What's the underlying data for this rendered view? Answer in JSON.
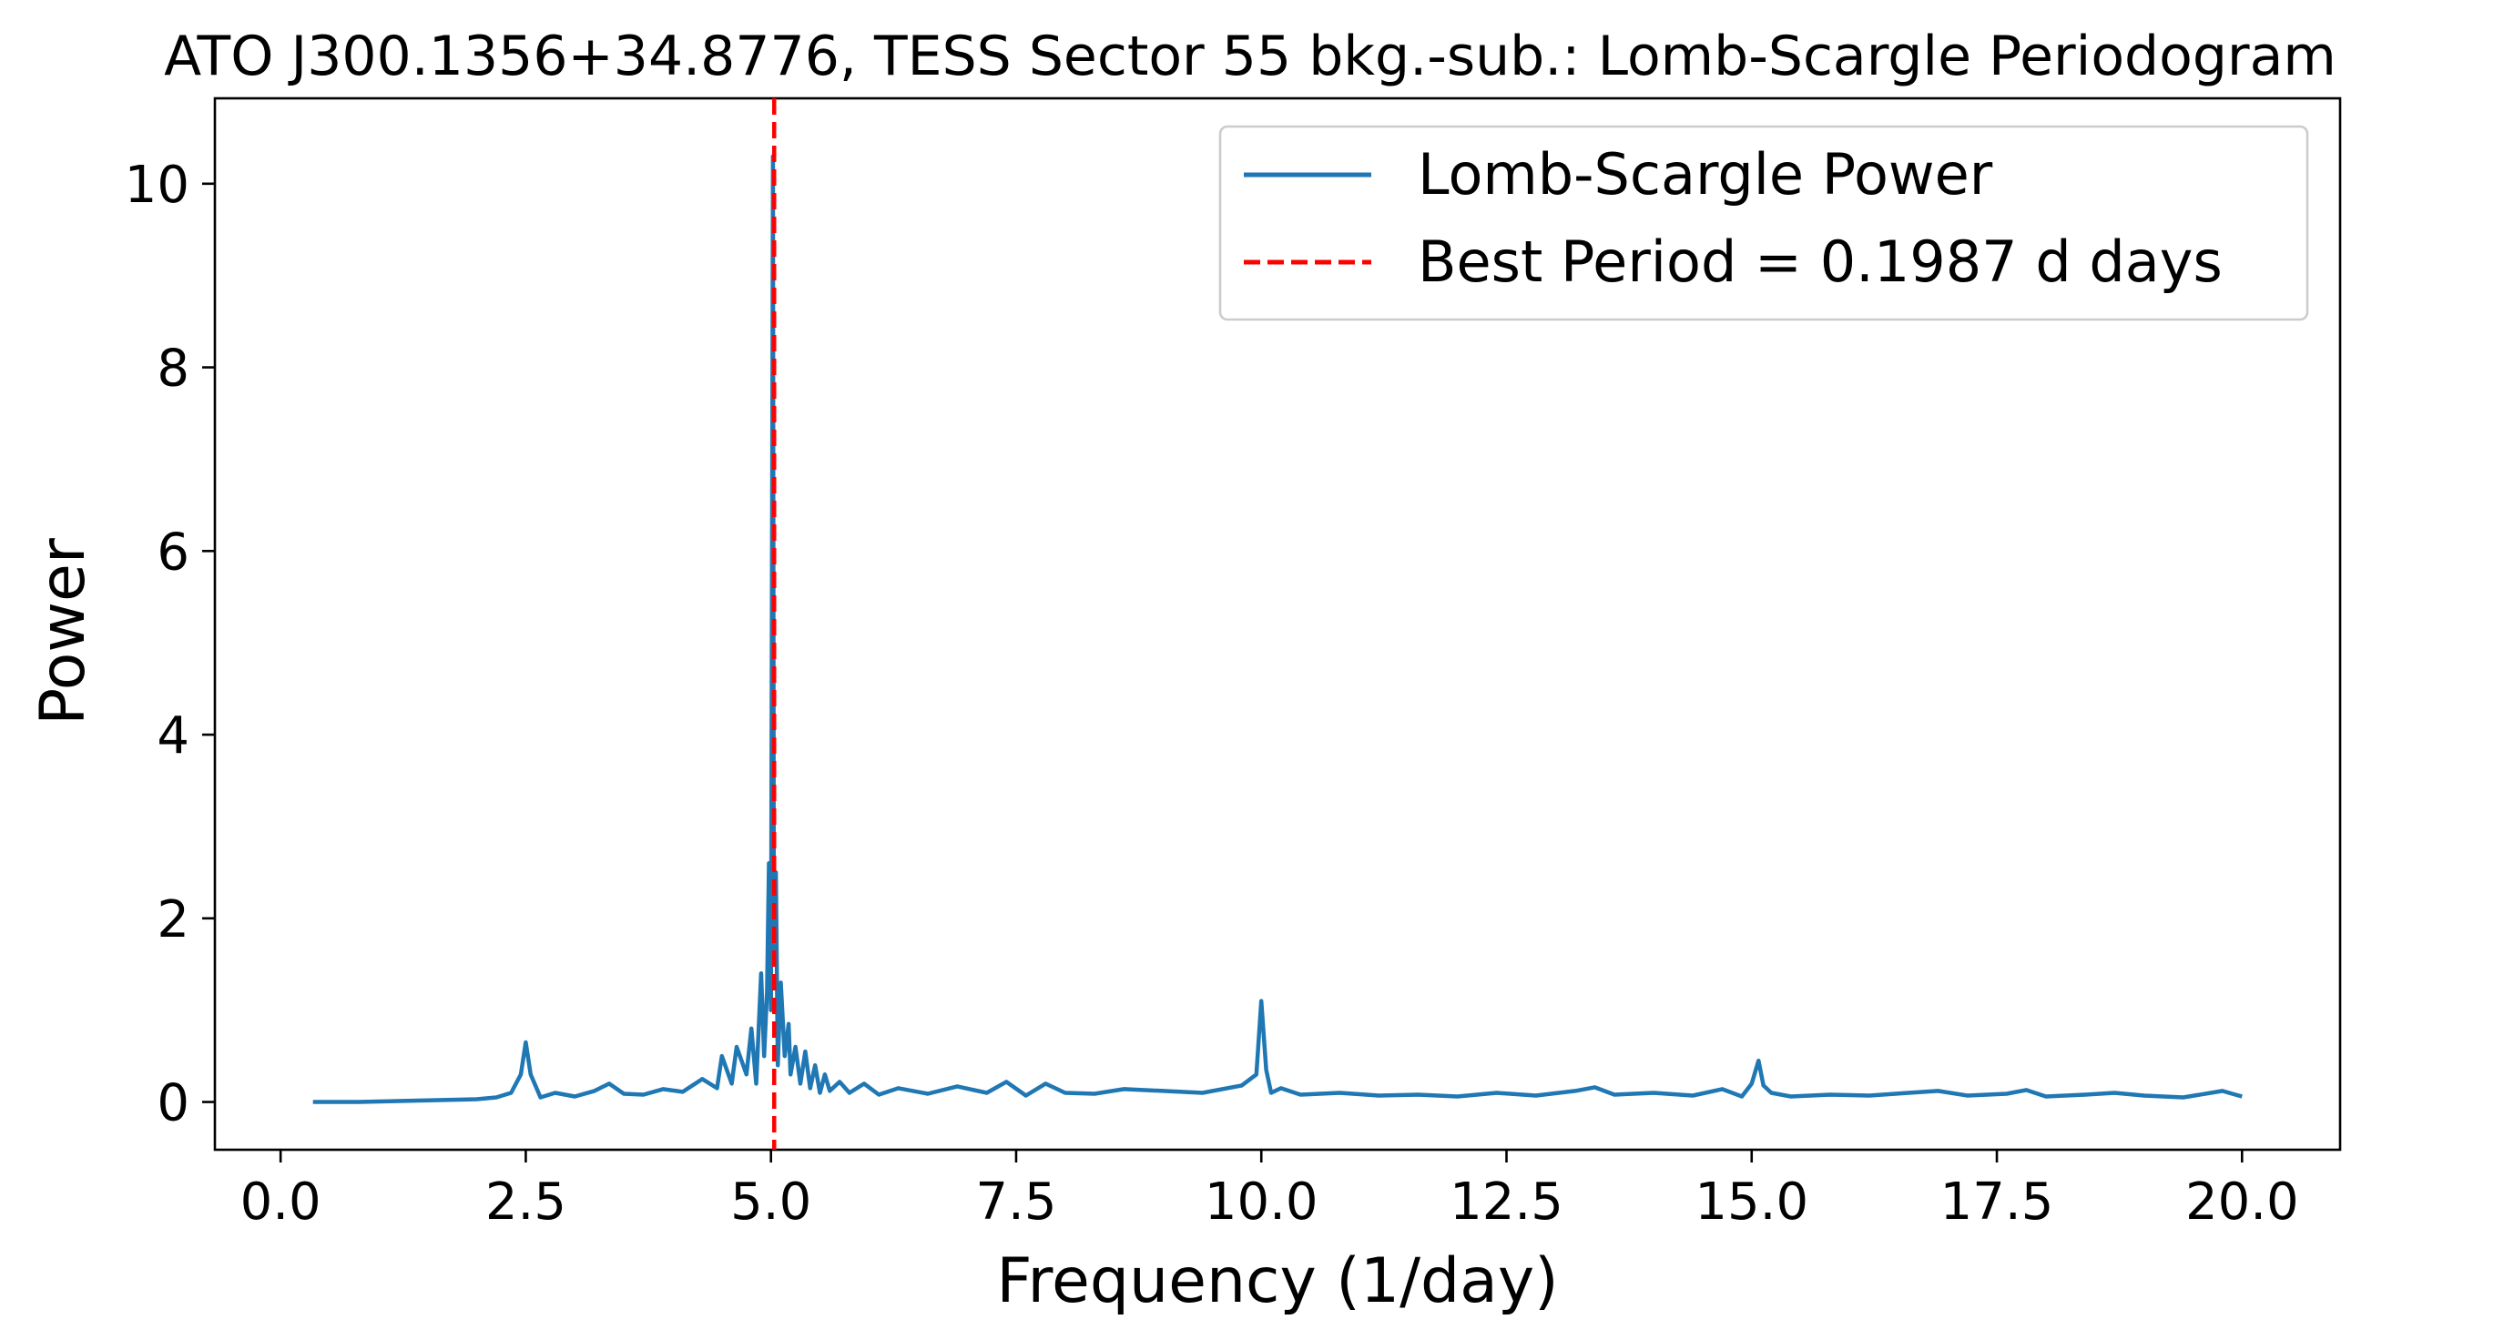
{
  "chart_data": {
    "type": "line",
    "title": "ATO J300.1356+34.8776, TESS Sector 55 bkg.-sub.: Lomb-Scargle Periodogram",
    "xlabel": "Frequency (1/day)",
    "ylabel": "Power",
    "xlim": [
      -0.67,
      21.0
    ],
    "ylim": [
      -0.52,
      10.93
    ],
    "xticks": [
      0.0,
      2.5,
      5.0,
      7.5,
      10.0,
      12.5,
      15.0,
      17.5,
      20.0
    ],
    "xtick_labels": [
      "0.0",
      "2.5",
      "5.0",
      "7.5",
      "10.0",
      "12.5",
      "15.0",
      "17.5",
      "20.0"
    ],
    "yticks": [
      0,
      2,
      4,
      6,
      8,
      10
    ],
    "ytick_labels": [
      "0",
      "2",
      "4",
      "6",
      "8",
      "10"
    ],
    "grid": false,
    "legend_position": "top-right",
    "colors": {
      "series": "#1f77b4",
      "best_period": "#ff0000"
    },
    "series": [
      {
        "name": "Lomb-Scargle Power",
        "style": "solid",
        "x": [
          0.33,
          0.8,
          1.2,
          1.6,
          2.0,
          2.2,
          2.35,
          2.45,
          2.5,
          2.55,
          2.65,
          2.8,
          3.0,
          3.2,
          3.35,
          3.5,
          3.7,
          3.9,
          4.1,
          4.3,
          4.45,
          4.5,
          4.6,
          4.65,
          4.75,
          4.8,
          4.85,
          4.9,
          4.93,
          4.96,
          4.98,
          5.0,
          5.02,
          5.03,
          5.05,
          5.07,
          5.1,
          5.14,
          5.18,
          5.2,
          5.25,
          5.3,
          5.35,
          5.4,
          5.45,
          5.5,
          5.55,
          5.6,
          5.7,
          5.8,
          5.95,
          6.1,
          6.3,
          6.6,
          6.9,
          7.2,
          7.4,
          7.6,
          7.8,
          8.0,
          8.3,
          8.6,
          9.0,
          9.4,
          9.8,
          9.95,
          10.0,
          10.05,
          10.1,
          10.2,
          10.4,
          10.8,
          11.2,
          11.6,
          12.0,
          12.4,
          12.8,
          13.2,
          13.4,
          13.6,
          14.0,
          14.4,
          14.7,
          14.9,
          15.0,
          15.07,
          15.12,
          15.2,
          15.4,
          15.8,
          16.2,
          16.6,
          16.9,
          17.2,
          17.6,
          17.8,
          18.0,
          18.4,
          18.7,
          19.0,
          19.4,
          19.8,
          19.9,
          20.0
        ],
        "y": [
          0.0,
          0.0,
          0.01,
          0.02,
          0.03,
          0.05,
          0.1,
          0.3,
          0.65,
          0.3,
          0.05,
          0.1,
          0.06,
          0.12,
          0.2,
          0.09,
          0.08,
          0.14,
          0.11,
          0.25,
          0.15,
          0.5,
          0.2,
          0.6,
          0.3,
          0.8,
          0.2,
          1.4,
          0.5,
          1.2,
          2.6,
          1.0,
          10.3,
          1.5,
          2.5,
          0.4,
          1.3,
          0.5,
          0.85,
          0.3,
          0.6,
          0.2,
          0.55,
          0.15,
          0.4,
          0.1,
          0.3,
          0.12,
          0.22,
          0.1,
          0.2,
          0.08,
          0.15,
          0.09,
          0.17,
          0.1,
          0.22,
          0.07,
          0.2,
          0.1,
          0.09,
          0.14,
          0.12,
          0.1,
          0.18,
          0.3,
          1.1,
          0.35,
          0.1,
          0.15,
          0.08,
          0.1,
          0.07,
          0.08,
          0.06,
          0.1,
          0.07,
          0.12,
          0.16,
          0.08,
          0.1,
          0.07,
          0.14,
          0.06,
          0.2,
          0.45,
          0.18,
          0.1,
          0.06,
          0.08,
          0.07,
          0.1,
          0.12,
          0.07,
          0.09,
          0.13,
          0.06,
          0.08,
          0.1,
          0.07,
          0.05,
          0.12,
          0.09,
          0.06
        ]
      },
      {
        "name": "Best Period = 0.1987 d days",
        "style": "dashed",
        "x_value": 5.033
      }
    ]
  }
}
